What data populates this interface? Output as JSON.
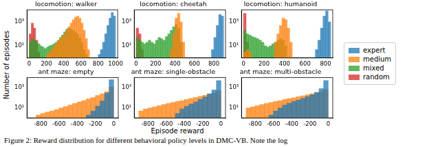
{
  "ylabel": "Number of episodes",
  "xlabel": "Episode reward",
  "legend": "right",
  "caption": "Figure 2:  Reward distribution for different behavioral policy levels in DMC-VB. Note the log",
  "chart_data": [
    {
      "type": "histogram",
      "title": "locomotion: walker",
      "log": "y",
      "grid": false,
      "xlim": [
        -25,
        1025
      ],
      "xticks": [
        0,
        200,
        400,
        600,
        800,
        1000
      ],
      "ylim": [
        1,
        10000
      ],
      "yticks": [
        {
          "value": 10,
          "label": "10¹"
        },
        {
          "value": 1000,
          "label": "10³"
        }
      ],
      "bins": [
        0,
        25,
        50,
        75,
        100,
        125,
        150,
        175,
        200,
        225,
        250,
        275,
        300,
        325,
        350,
        375,
        400,
        425,
        450,
        475,
        500,
        525,
        550,
        575,
        600,
        625,
        650,
        675,
        700,
        725,
        750,
        775,
        800,
        825,
        850,
        875,
        900,
        925,
        950,
        975,
        1000
      ],
      "series": [
        {
          "name": "expert",
          "color": "#1f77b4",
          "values": [
            null,
            null,
            null,
            null,
            null,
            null,
            null,
            null,
            null,
            null,
            null,
            null,
            null,
            null,
            null,
            null,
            null,
            null,
            null,
            null,
            null,
            null,
            null,
            null,
            null,
            null,
            null,
            null,
            null,
            null,
            null,
            null,
            2,
            5,
            20,
            100,
            500,
            2000,
            6000,
            3000
          ]
        },
        {
          "name": "medium",
          "color": "#ff7f0e",
          "values": [
            null,
            null,
            null,
            null,
            null,
            null,
            null,
            null,
            2,
            3,
            5,
            8,
            15,
            25,
            40,
            60,
            100,
            200,
            400,
            800,
            1500,
            2500,
            3000,
            2000,
            800,
            200,
            40,
            5,
            null,
            null,
            null,
            null,
            null,
            null,
            null,
            null,
            null,
            null,
            null,
            null
          ]
        },
        {
          "name": "mixed",
          "color": "#2ca02c",
          "values": [
            20,
            40,
            30,
            20,
            15,
            10,
            8,
            6,
            8,
            10,
            12,
            15,
            20,
            30,
            50,
            80,
            150,
            250,
            300,
            250,
            200,
            150,
            100,
            50,
            20,
            5,
            2,
            null,
            null,
            null,
            null,
            null,
            null,
            null,
            null,
            null,
            null,
            null,
            null,
            null
          ]
        },
        {
          "name": "random",
          "color": "#d62728",
          "values": [
            100,
            800,
            300,
            30,
            3,
            null,
            null,
            null,
            null,
            null,
            null,
            null,
            null,
            null,
            null,
            null,
            null,
            null,
            null,
            null,
            null,
            null,
            null,
            null,
            null,
            null,
            null,
            null,
            null,
            null,
            null,
            null,
            null,
            null,
            null,
            null,
            null,
            null,
            null,
            null
          ]
        }
      ]
    },
    {
      "type": "histogram",
      "title": "locomotion: cheetah",
      "log": "y",
      "grid": false,
      "xlim": [
        -20,
        920
      ],
      "xticks": [
        0,
        200,
        400,
        600,
        800
      ],
      "ylim": [
        1,
        10000
      ],
      "yticks": [
        {
          "value": 10,
          "label": "10¹"
        },
        {
          "value": 1000,
          "label": "10³"
        }
      ],
      "bins": [
        0,
        25,
        50,
        75,
        100,
        125,
        150,
        175,
        200,
        225,
        250,
        275,
        300,
        325,
        350,
        375,
        400,
        425,
        450,
        475,
        500,
        525,
        550,
        575,
        600,
        625,
        650,
        675,
        700,
        725,
        750,
        775,
        800,
        825,
        850,
        875,
        900
      ],
      "series": [
        {
          "name": "expert",
          "color": "#1f77b4",
          "values": [
            null,
            null,
            null,
            null,
            null,
            null,
            null,
            null,
            null,
            null,
            null,
            null,
            null,
            null,
            null,
            null,
            null,
            null,
            null,
            null,
            null,
            null,
            null,
            null,
            null,
            null,
            null,
            null,
            null,
            null,
            null,
            5,
            50,
            500,
            4000,
            3000
          ]
        },
        {
          "name": "medium",
          "color": "#ff7f0e",
          "values": [
            null,
            null,
            null,
            null,
            null,
            null,
            null,
            null,
            null,
            null,
            null,
            null,
            null,
            null,
            5,
            100,
            2000,
            5000,
            1000,
            20,
            null,
            null,
            null,
            null,
            null,
            null,
            null,
            null,
            null,
            null,
            null,
            null,
            null,
            null,
            null,
            null
          ]
        },
        {
          "name": "mixed",
          "color": "#2ca02c",
          "values": [
            50,
            30,
            20,
            15,
            20,
            30,
            20,
            15,
            30,
            50,
            40,
            30,
            60,
            100,
            200,
            400,
            600,
            300,
            20,
            null,
            null,
            null,
            null,
            null,
            null,
            null,
            null,
            null,
            null,
            null,
            null,
            null,
            null,
            null,
            null,
            null
          ]
        },
        {
          "name": "random",
          "color": "#d62728",
          "values": [
            300,
            100,
            5,
            null,
            null,
            null,
            null,
            null,
            null,
            null,
            null,
            null,
            null,
            null,
            null,
            null,
            null,
            null,
            null,
            null,
            null,
            null,
            null,
            null,
            null,
            null,
            null,
            null,
            null,
            null,
            null,
            null,
            null,
            null,
            null,
            null
          ]
        }
      ]
    },
    {
      "type": "histogram",
      "title": "locomotion: humanoid",
      "log": "y",
      "grid": false,
      "xlim": [
        -20,
        870
      ],
      "xticks": [
        0,
        200,
        400,
        600,
        800
      ],
      "ylim": [
        1,
        10000
      ],
      "yticks": [
        {
          "value": 10,
          "label": "10¹"
        },
        {
          "value": 1000,
          "label": "10³"
        }
      ],
      "bins": [
        0,
        25,
        50,
        75,
        100,
        125,
        150,
        175,
        200,
        225,
        250,
        275,
        300,
        325,
        350,
        375,
        400,
        425,
        450,
        475,
        500,
        525,
        550,
        575,
        600,
        625,
        650,
        675,
        700,
        725,
        750,
        775,
        800,
        825,
        850,
        875
      ],
      "series": [
        {
          "name": "expert",
          "color": "#1f77b4",
          "values": [
            null,
            null,
            null,
            null,
            null,
            null,
            null,
            null,
            null,
            null,
            null,
            null,
            null,
            null,
            null,
            null,
            null,
            null,
            null,
            null,
            null,
            null,
            null,
            null,
            null,
            null,
            null,
            null,
            5,
            30,
            300,
            3000,
            8000,
            1000,
            null
          ]
        },
        {
          "name": "medium",
          "color": "#ff7f0e",
          "values": [
            3,
            5,
            3,
            null,
            null,
            null,
            null,
            null,
            null,
            null,
            null,
            null,
            20,
            100,
            500,
            2000,
            1500,
            300,
            20,
            null,
            null,
            null,
            null,
            null,
            null,
            null,
            null,
            null,
            null,
            null,
            null,
            null,
            null,
            null,
            null
          ]
        },
        {
          "name": "mixed",
          "color": "#2ca02c",
          "values": [
            200,
            100,
            80,
            60,
            50,
            40,
            30,
            20,
            10,
            8,
            10,
            15,
            20,
            30,
            40,
            30,
            10,
            null,
            null,
            null,
            null,
            null,
            null,
            null,
            null,
            null,
            null,
            null,
            null,
            null,
            null,
            null,
            null,
            null,
            null
          ]
        },
        {
          "name": "random",
          "color": "#d62728",
          "values": [
            5000,
            20,
            null,
            null,
            null,
            null,
            null,
            null,
            null,
            null,
            null,
            null,
            null,
            null,
            null,
            null,
            null,
            null,
            null,
            null,
            null,
            null,
            null,
            null,
            null,
            null,
            null,
            null,
            null,
            null,
            null,
            null,
            null,
            null,
            null
          ]
        }
      ]
    },
    {
      "type": "histogram",
      "title": "ant maze: empty",
      "log": "y",
      "grid": false,
      "xlim": [
        -950,
        50
      ],
      "xticks": [
        -800,
        -600,
        -400,
        -200,
        0
      ],
      "ylim": [
        1,
        10000
      ],
      "yticks": [
        {
          "value": 10,
          "label": "10¹"
        },
        {
          "value": 1000,
          "label": "10³"
        }
      ],
      "bins": [
        -900,
        -850,
        -800,
        -750,
        -700,
        -650,
        -600,
        -550,
        -500,
        -450,
        -400,
        -350,
        -300,
        -250,
        -200,
        -150,
        -100,
        -50,
        0
      ],
      "series": [
        {
          "name": "expert",
          "color": "#1f77b4",
          "values": [
            null,
            null,
            null,
            null,
            null,
            null,
            null,
            null,
            null,
            null,
            null,
            null,
            2,
            5,
            15,
            50,
            300,
            6000
          ]
        },
        {
          "name": "medium",
          "color": "#ff7f0e",
          "values": [
            1,
            2,
            3,
            4,
            5,
            7,
            10,
            14,
            20,
            28,
            40,
            55,
            80,
            110,
            170,
            250,
            400,
            1200
          ]
        }
      ]
    },
    {
      "type": "histogram",
      "title": "ant maze: single-obstacle",
      "log": "y",
      "grid": false,
      "xlim": [
        -950,
        50
      ],
      "xticks": [
        -800,
        -600,
        -400,
        -200,
        0
      ],
      "ylim": [
        1,
        10000
      ],
      "yticks": [
        {
          "value": 10,
          "label": "10¹"
        },
        {
          "value": 1000,
          "label": "10³"
        }
      ],
      "bins": [
        -900,
        -850,
        -800,
        -750,
        -700,
        -650,
        -600,
        -550,
        -500,
        -450,
        -400,
        -350,
        -300,
        -250,
        -200,
        -150,
        -100,
        -50,
        0
      ],
      "series": [
        {
          "name": "expert",
          "color": "#1f77b4",
          "values": [
            null,
            null,
            null,
            null,
            null,
            null,
            null,
            null,
            3,
            8,
            15,
            25,
            40,
            70,
            120,
            250,
            600,
            5000
          ]
        },
        {
          "name": "medium",
          "color": "#ff7f0e",
          "values": [
            5,
            8,
            10,
            13,
            17,
            22,
            28,
            35,
            45,
            55,
            70,
            90,
            110,
            140,
            180,
            230,
            300,
            500
          ]
        }
      ]
    },
    {
      "type": "histogram",
      "title": "ant maze: multi-obstacle",
      "log": "y",
      "grid": false,
      "xlim": [
        -950,
        50
      ],
      "xticks": [
        -800,
        -600,
        -400,
        -200,
        0
      ],
      "ylim": [
        1,
        10000
      ],
      "yticks": [
        {
          "value": 10,
          "label": "10¹"
        },
        {
          "value": 1000,
          "label": "10³"
        }
      ],
      "bins": [
        -900,
        -850,
        -800,
        -750,
        -700,
        -650,
        -600,
        -550,
        -500,
        -450,
        -400,
        -350,
        -300,
        -250,
        -200,
        -150,
        -100,
        -50,
        0
      ],
      "series": [
        {
          "name": "expert",
          "color": "#1f77b4",
          "values": [
            null,
            null,
            null,
            null,
            null,
            2,
            5,
            10,
            20,
            30,
            45,
            60,
            90,
            130,
            200,
            350,
            800,
            5000
          ]
        },
        {
          "name": "medium",
          "color": "#ff7f0e",
          "values": [
            10,
            13,
            17,
            22,
            28,
            35,
            45,
            55,
            70,
            85,
            100,
            130,
            160,
            200,
            250,
            320,
            400,
            600
          ]
        }
      ]
    }
  ]
}
